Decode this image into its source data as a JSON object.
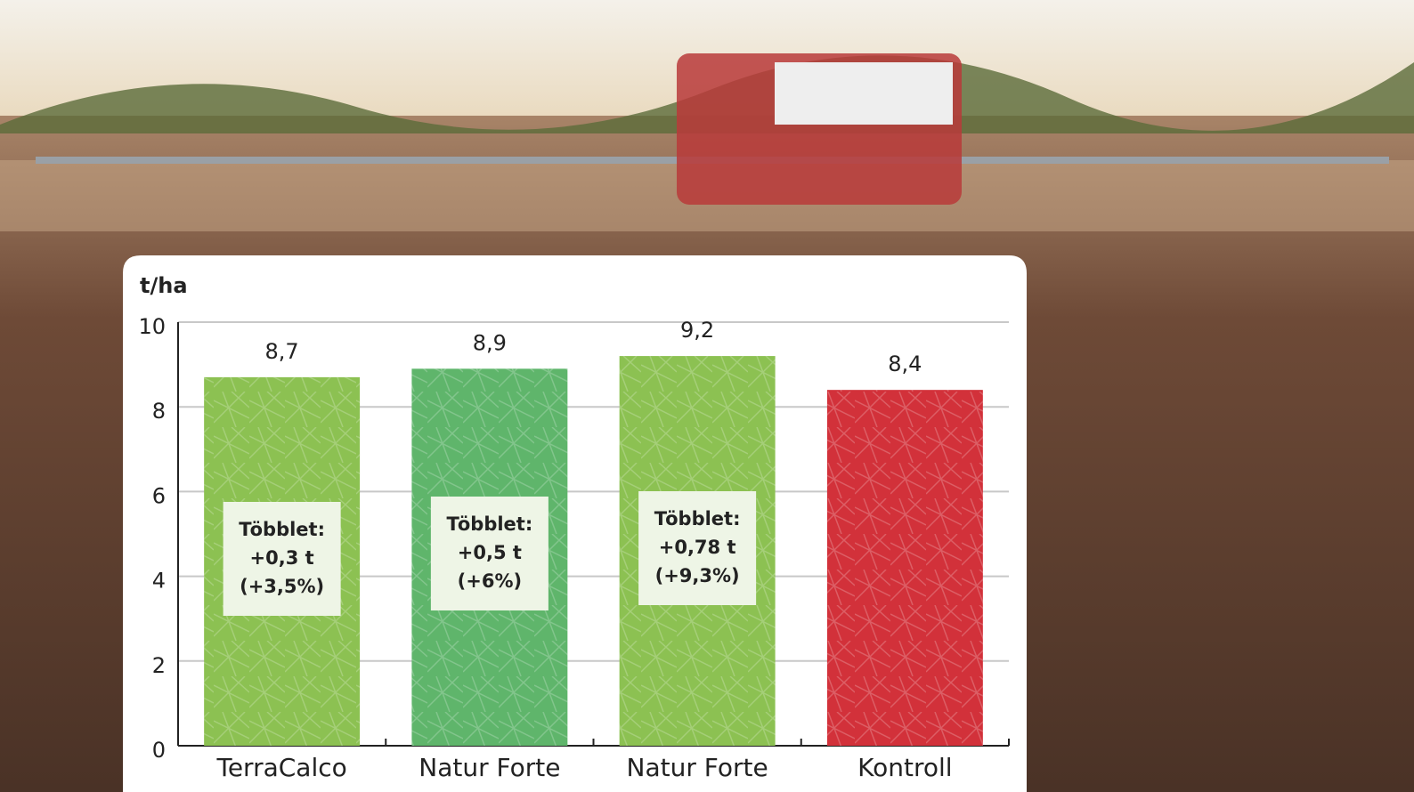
{
  "chart_data": {
    "type": "bar",
    "y_label": "t/ha",
    "categories": [
      "TerraCalco",
      "Natur Forte",
      "Natur Forte",
      "Kontroll"
    ],
    "values": [
      8.7,
      8.9,
      9.2,
      8.4
    ],
    "value_labels": [
      "8,7",
      "8,9",
      "9,2",
      "8,4"
    ],
    "colors": [
      "#8cc152",
      "#5fb56b",
      "#8cc152",
      "#d2313a"
    ],
    "annotations": [
      [
        "Többlet:",
        "+0,3 t",
        "(+3,5%)"
      ],
      [
        "Többlet:",
        "+0,5 t",
        "(+6%)"
      ],
      [
        "Többlet:",
        "+0,78 t",
        "(+9,3%)"
      ]
    ],
    "ylim": [
      0,
      10
    ],
    "yticks": [
      0,
      2,
      4,
      6,
      8,
      10
    ],
    "grid": true
  }
}
